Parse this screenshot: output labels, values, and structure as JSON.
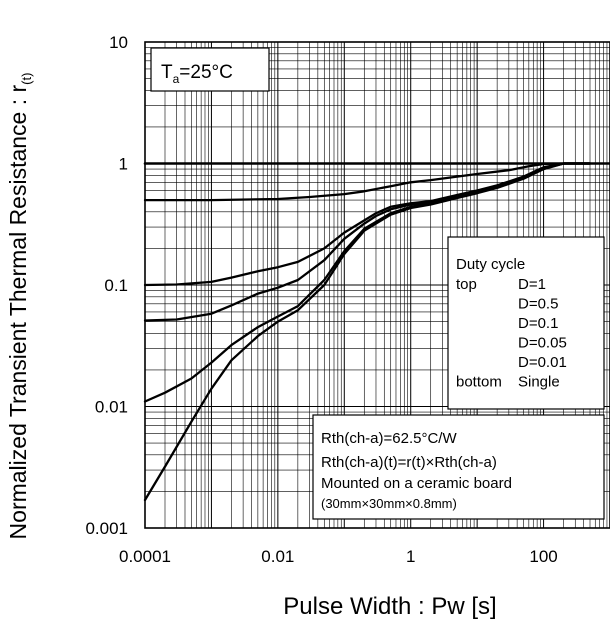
{
  "chart_data": {
    "type": "line",
    "title": "",
    "xlabel": "Pulse Width : Pw [s]",
    "ylabel_main": "Normalized Transient Thermal Resistance : r",
    "ylabel_sub": "(t)",
    "x_scale": "log",
    "y_scale": "log",
    "xlim": [
      0.0001,
      1000
    ],
    "ylim": [
      0.001,
      10
    ],
    "grid": true,
    "x_ticks": [
      {
        "value": 0.0001,
        "label": "0.0001"
      },
      {
        "value": 0.01,
        "label": "0.01"
      },
      {
        "value": 1,
        "label": "1"
      },
      {
        "value": 100,
        "label": "100"
      }
    ],
    "y_ticks": [
      {
        "value": 0.001,
        "label": "0.001"
      },
      {
        "value": 0.01,
        "label": "0.01"
      },
      {
        "value": 0.1,
        "label": "0.1"
      },
      {
        "value": 1,
        "label": "1"
      },
      {
        "value": 10,
        "label": "10"
      }
    ],
    "annotation_temp": {
      "main": "T",
      "sub": "a",
      "rest": "=25°C"
    },
    "legend": {
      "header": "Duty cycle",
      "rows": [
        {
          "left": "top",
          "right": "D=1"
        },
        {
          "left": "",
          "right": "D=0.5"
        },
        {
          "left": "",
          "right": "D=0.1"
        },
        {
          "left": "",
          "right": "D=0.05"
        },
        {
          "left": "",
          "right": "D=0.01"
        },
        {
          "left": "bottom",
          "right": "Single"
        }
      ]
    },
    "note": {
      "lines": [
        "Rth(ch-a)=62.5°C/W",
        "Rth(ch-a)(t)=r(t)×Rth(ch-a)",
        "Mounted on a ceramic board",
        "(30mm×30mm×0.8mm)"
      ]
    },
    "series": [
      {
        "name": "D=1",
        "x": [
          0.0001,
          1,
          10,
          100,
          1000
        ],
        "y": [
          1,
          1,
          1,
          1,
          1
        ]
      },
      {
        "name": "D=0.5",
        "x": [
          0.0001,
          0.001,
          0.01,
          0.03,
          0.1,
          0.2,
          0.5,
          1,
          2,
          5,
          10,
          30,
          60,
          100,
          200,
          500
        ],
        "y": [
          0.5,
          0.5,
          0.51,
          0.53,
          0.56,
          0.59,
          0.65,
          0.7,
          0.73,
          0.78,
          0.82,
          0.88,
          0.95,
          0.99,
          1,
          1
        ]
      },
      {
        "name": "D=0.1",
        "x": [
          0.0001,
          0.0003,
          0.001,
          0.002,
          0.005,
          0.01,
          0.02,
          0.05,
          0.1,
          0.2,
          0.3,
          0.5,
          1,
          2,
          5,
          10,
          20,
          50,
          100,
          200,
          500
        ],
        "y": [
          0.1,
          0.101,
          0.106,
          0.115,
          0.13,
          0.14,
          0.155,
          0.2,
          0.27,
          0.34,
          0.39,
          0.44,
          0.47,
          0.49,
          0.55,
          0.6,
          0.66,
          0.78,
          0.93,
          1,
          1
        ]
      },
      {
        "name": "D=0.05",
        "x": [
          0.0001,
          0.0003,
          0.001,
          0.002,
          0.005,
          0.01,
          0.02,
          0.05,
          0.1,
          0.2,
          0.3,
          0.5,
          1,
          2,
          5,
          10,
          20,
          50,
          100,
          200,
          500
        ],
        "y": [
          0.051,
          0.052,
          0.058,
          0.068,
          0.085,
          0.095,
          0.11,
          0.16,
          0.24,
          0.32,
          0.37,
          0.42,
          0.46,
          0.48,
          0.54,
          0.59,
          0.65,
          0.77,
          0.92,
          1,
          1
        ]
      },
      {
        "name": "D=0.01",
        "x": [
          0.0001,
          0.0002,
          0.0005,
          0.001,
          0.002,
          0.005,
          0.01,
          0.02,
          0.05,
          0.1,
          0.2,
          0.5,
          1,
          2,
          5,
          10,
          20,
          50,
          100,
          200,
          500
        ],
        "y": [
          0.011,
          0.013,
          0.017,
          0.023,
          0.032,
          0.045,
          0.055,
          0.067,
          0.11,
          0.19,
          0.29,
          0.39,
          0.44,
          0.47,
          0.53,
          0.58,
          0.64,
          0.76,
          0.91,
          1,
          1
        ]
      },
      {
        "name": "Single",
        "x": [
          0.0001,
          0.0002,
          0.0005,
          0.001,
          0.002,
          0.005,
          0.01,
          0.02,
          0.05,
          0.1,
          0.2,
          0.5,
          1,
          2,
          5,
          10,
          20,
          50,
          100,
          200,
          500
        ],
        "y": [
          0.0017,
          0.0032,
          0.0075,
          0.014,
          0.024,
          0.038,
          0.05,
          0.062,
          0.1,
          0.18,
          0.28,
          0.38,
          0.43,
          0.46,
          0.52,
          0.57,
          0.63,
          0.75,
          0.9,
          1,
          1
        ]
      }
    ]
  }
}
